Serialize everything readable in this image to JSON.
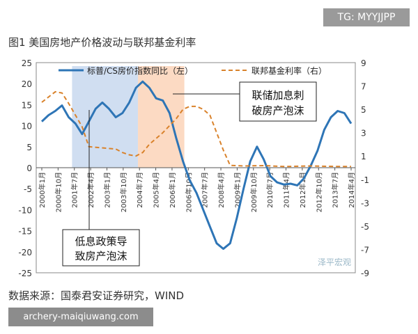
{
  "top_watermark": "TG: MYYJJPP",
  "figure_title": "图1 美国房地产价格波动与联邦基金利率",
  "source": "数据来源：国泰君安证券研究，WIND",
  "bottom_watermark": "archery-maiqiuwang.com",
  "brand_watermark": "泽平宏观",
  "chart_data": {
    "type": "line",
    "x_tick_labels": [
      "2000年1月",
      "2000年10月",
      "2001年7月",
      "2002年4月",
      "2003年1月",
      "2003年10月",
      "2004年7月",
      "2005年4月",
      "2006年1月",
      "2006年10月",
      "2007年7月",
      "2008年4月",
      "2009年1月",
      "2009年10月",
      "2010年7月",
      "2011年4月",
      "2012年1月",
      "2012年10月",
      "2013年7月",
      "2014年4月"
    ],
    "y_left": {
      "min": -25,
      "max": 25,
      "ticks": [
        25,
        20,
        15,
        10,
        5,
        0,
        -5,
        -10,
        -15,
        -20,
        -25
      ]
    },
    "y_right": {
      "min": -9,
      "max": 9,
      "ticks": [
        9,
        7,
        5,
        3,
        1,
        -1,
        -3,
        -5,
        -7,
        -9
      ]
    },
    "series": [
      {
        "name": "标普/CS房价指数同比（左）",
        "axis": "left",
        "color": "#2e75b6",
        "style": "solid",
        "points": [
          [
            0,
            11
          ],
          [
            1,
            12.5
          ],
          [
            2,
            13.5
          ],
          [
            3,
            14.8
          ],
          [
            4,
            12
          ],
          [
            5,
            10.5
          ],
          [
            6,
            8
          ],
          [
            7,
            11
          ],
          [
            8,
            14
          ],
          [
            9,
            15.5
          ],
          [
            10,
            14
          ],
          [
            11,
            12
          ],
          [
            12,
            13
          ],
          [
            13,
            15.5
          ],
          [
            14,
            19
          ],
          [
            15,
            20.5
          ],
          [
            16,
            19
          ],
          [
            17,
            16.5
          ],
          [
            18,
            16
          ],
          [
            19,
            13
          ],
          [
            20,
            7
          ],
          [
            21,
            1.5
          ],
          [
            22,
            -3
          ],
          [
            23,
            -6
          ],
          [
            24,
            -10
          ],
          [
            25,
            -14
          ],
          [
            26,
            -18
          ],
          [
            27,
            -19.3
          ],
          [
            28,
            -18
          ],
          [
            29,
            -12
          ],
          [
            30,
            -5
          ],
          [
            31,
            1.5
          ],
          [
            32,
            5
          ],
          [
            33,
            2
          ],
          [
            34,
            -2
          ],
          [
            35,
            -3.5
          ],
          [
            36,
            -4
          ],
          [
            37,
            -3.8
          ],
          [
            38,
            -4.2
          ],
          [
            39,
            -2.5
          ],
          [
            40,
            0.5
          ],
          [
            41,
            4
          ],
          [
            42,
            9
          ],
          [
            43,
            12
          ],
          [
            44,
            13.5
          ],
          [
            45,
            13
          ],
          [
            46,
            10.5
          ]
        ]
      },
      {
        "name": "联邦基金利率（右）",
        "axis": "right",
        "color": "#d9822b",
        "style": "dashed",
        "points": [
          [
            0,
            5.6
          ],
          [
            2,
            6.5
          ],
          [
            3,
            6.4
          ],
          [
            4,
            5.5
          ],
          [
            5,
            4.5
          ],
          [
            6,
            3.5
          ],
          [
            7,
            1.8
          ],
          [
            9,
            1.7
          ],
          [
            11,
            1.6
          ],
          [
            12,
            1.3
          ],
          [
            13,
            1.1
          ],
          [
            14,
            1.0
          ],
          [
            15,
            1.3
          ],
          [
            16,
            2.0
          ],
          [
            18,
            3.0
          ],
          [
            20,
            4.2
          ],
          [
            21,
            5.0
          ],
          [
            22,
            5.25
          ],
          [
            23,
            5.25
          ],
          [
            24,
            5.0
          ],
          [
            25,
            4.5
          ],
          [
            26,
            3.0
          ],
          [
            27,
            1.5
          ],
          [
            28,
            0.2
          ],
          [
            30,
            0.15
          ],
          [
            33,
            0.18
          ],
          [
            36,
            0.1
          ],
          [
            40,
            0.15
          ],
          [
            44,
            0.1
          ],
          [
            46,
            0.1
          ]
        ]
      }
    ],
    "x_point_count": 47,
    "shaded_regions": [
      {
        "from": 4.5,
        "to": 14.3,
        "color": "#c8d8ef"
      },
      {
        "from": 14.3,
        "to": 21.2,
        "color": "#fbd3b8"
      }
    ],
    "annotations": [
      {
        "text": [
          "联储加息刺",
          "破房产泡沫"
        ]
      },
      {
        "text": [
          "低息政策导",
          "致房产泡沫"
        ]
      }
    ],
    "legend_position": "top"
  }
}
